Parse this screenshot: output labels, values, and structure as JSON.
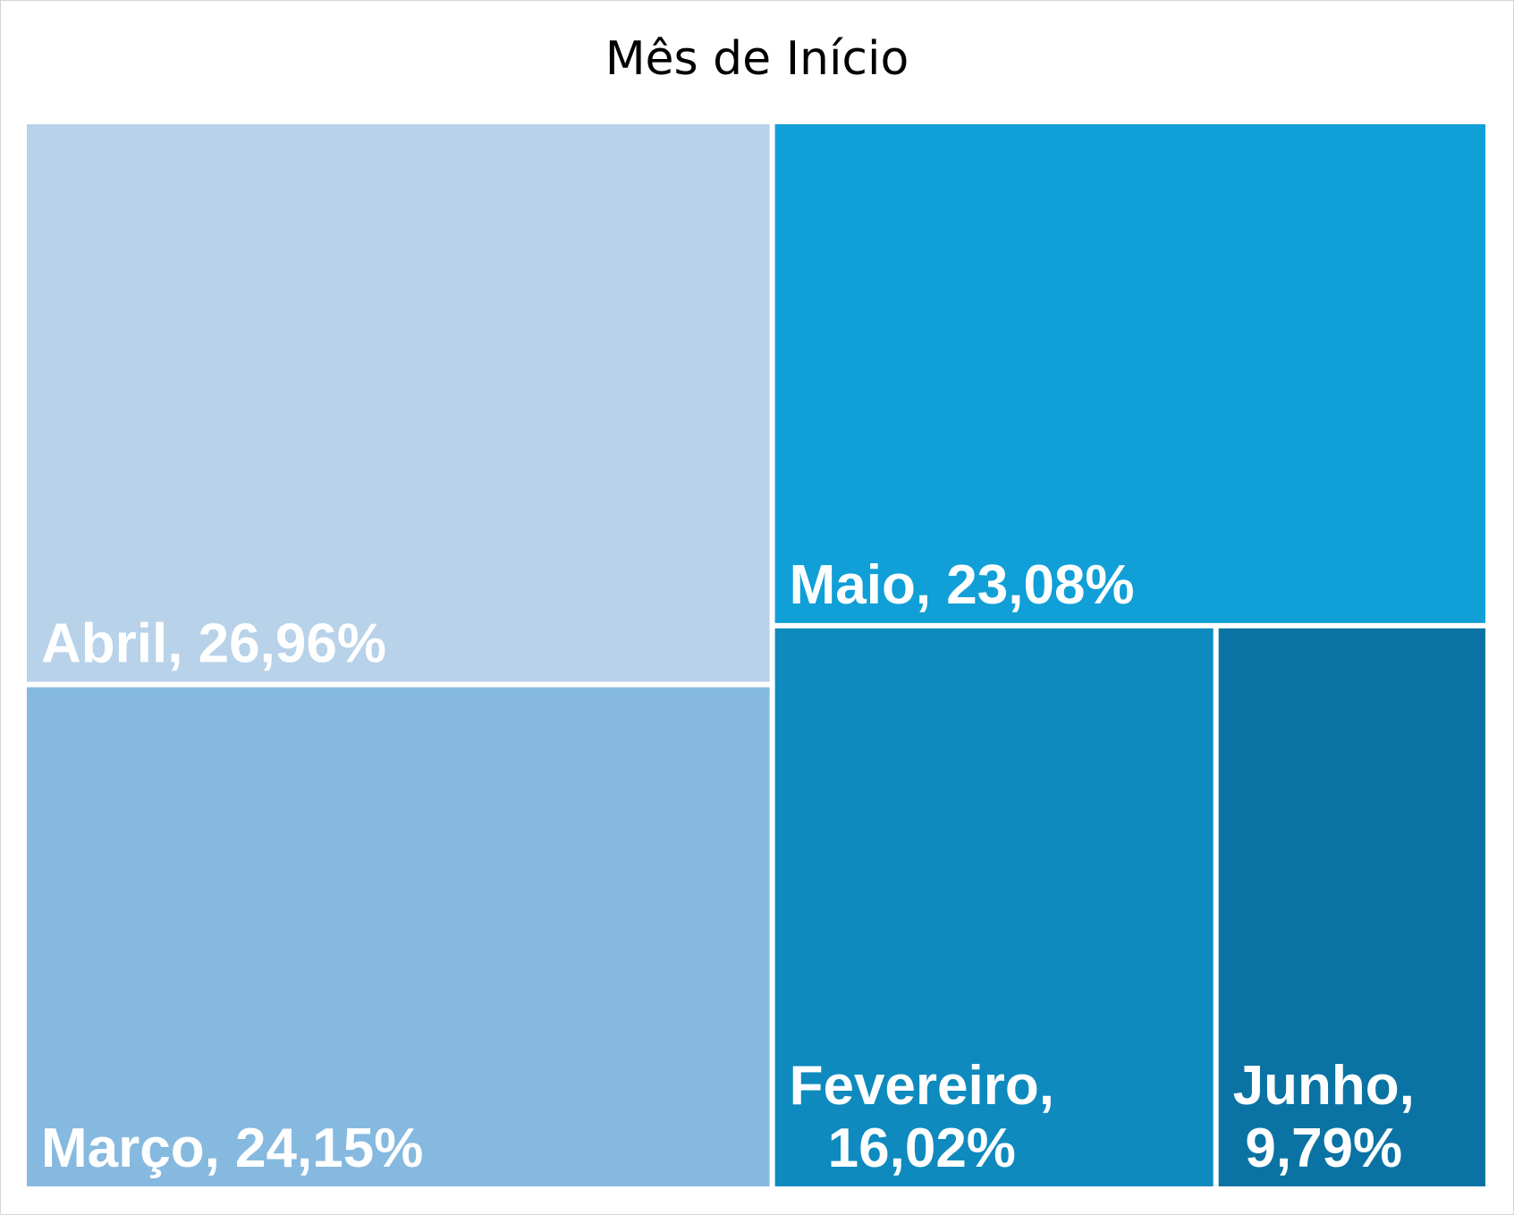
{
  "chart_data": {
    "type": "treemap",
    "title": "Mês de Início",
    "items": [
      {
        "name": "Abril",
        "value": 26.96,
        "label_lines": [
          "Abril, 26,96%"
        ],
        "color": "#B7D2E9"
      },
      {
        "name": "Março",
        "value": 24.15,
        "label_lines": [
          "Março, 24,15%"
        ],
        "color": "#86B9DF"
      },
      {
        "name": "Maio",
        "value": 23.08,
        "label_lines": [
          "Maio, 23,08%"
        ],
        "color": "#109FD7"
      },
      {
        "name": "Fevereiro",
        "value": 16.02,
        "label_lines": [
          "Fevereiro,",
          "16,02%"
        ],
        "color": "#0E8ABE"
      },
      {
        "name": "Junho",
        "value": 9.79,
        "label_lines": [
          "Junho,",
          "9,79%"
        ],
        "color": "#0B73A3"
      }
    ]
  }
}
